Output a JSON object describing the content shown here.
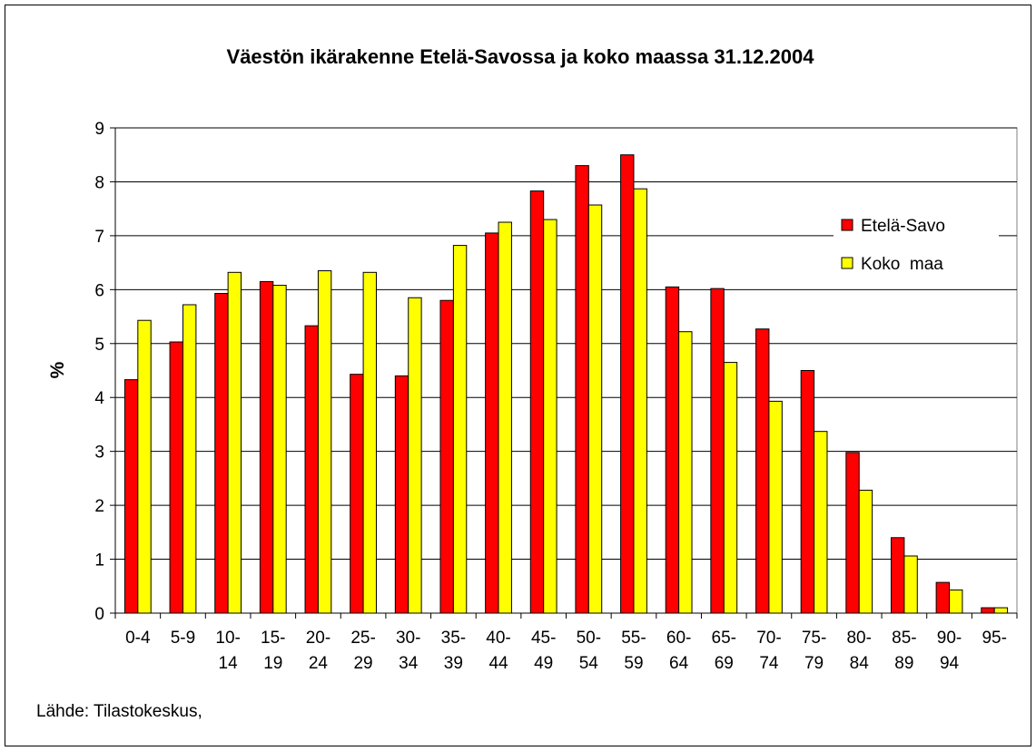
{
  "chart_data": {
    "type": "bar",
    "title": "Väestön ikärakenne Etelä-Savossa ja koko maassa 31.12.2004",
    "y_label": "%",
    "source": "Lähde: Tilastokeskus,",
    "categories": [
      "0-4",
      "5-9",
      "10-14",
      "15-19",
      "20-24",
      "25-29",
      "30-34",
      "35-39",
      "40-44",
      "45-49",
      "50-54",
      "55-59",
      "60-64",
      "65-69",
      "70-74",
      "75-79",
      "80-84",
      "85-89",
      "90-94",
      "95-"
    ],
    "series": [
      {
        "name": "Etelä-Savo",
        "color": "#ff0000",
        "values": [
          4.33,
          5.03,
          5.93,
          6.15,
          5.33,
          4.43,
          4.4,
          5.8,
          7.05,
          7.83,
          8.3,
          8.5,
          6.05,
          6.02,
          5.27,
          4.5,
          2.98,
          1.4,
          0.57,
          0.1
        ]
      },
      {
        "name": "Koko  maa",
        "color": "#ffff00",
        "values": [
          5.43,
          5.72,
          6.32,
          6.08,
          6.35,
          6.32,
          5.85,
          6.82,
          7.25,
          7.3,
          7.57,
          7.87,
          5.22,
          4.65,
          3.93,
          3.37,
          2.28,
          1.06,
          0.43,
          0.1
        ]
      }
    ],
    "ylim": [
      0,
      9
    ],
    "yticks": [
      0,
      1,
      2,
      3,
      4,
      5,
      6,
      7,
      8,
      9
    ],
    "grid": true,
    "legend": "right"
  }
}
